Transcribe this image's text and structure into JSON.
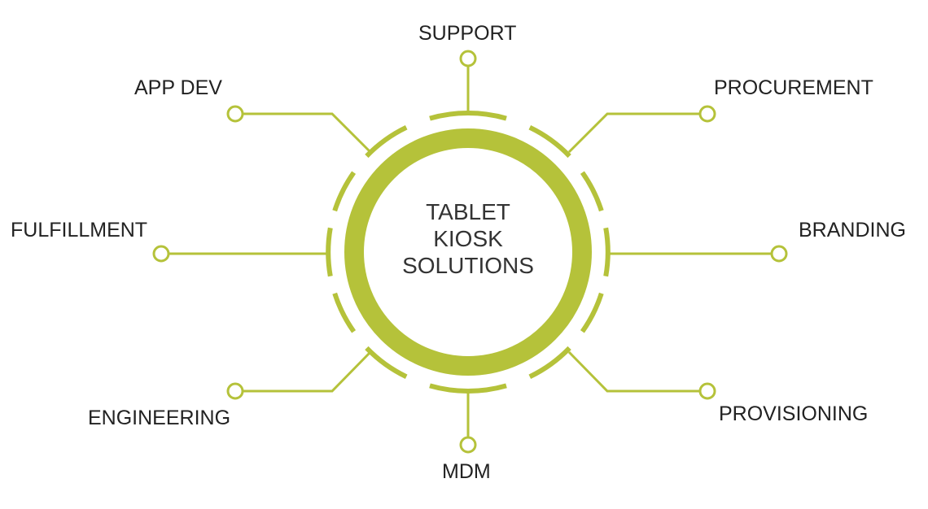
{
  "center": {
    "lines": [
      "TABLET",
      "KIOSK",
      "SOLUTIONS"
    ]
  },
  "labels": {
    "support": "SUPPORT",
    "app_dev": "APP DEV",
    "procurement": "PROCUREMENT",
    "fulfillment": "FULFILLMENT",
    "branding": "BRANDING",
    "engineering": "ENGINEERING",
    "provisioning": "PROVISIONING",
    "mdm": "MDM"
  },
  "colors": {
    "accent": "#b5c23a",
    "text": "#222222",
    "background": "#ffffff"
  }
}
